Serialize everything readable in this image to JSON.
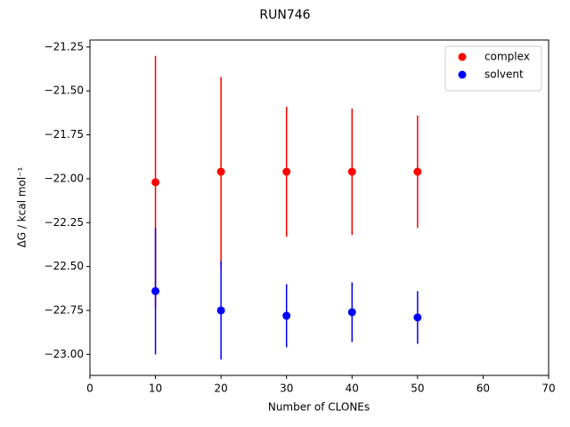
{
  "chart_data": {
    "type": "errorbar",
    "title": "RUN746",
    "x_label": "Number of CLONEs",
    "y_label": "ΔG / kcal mol⁻¹",
    "x": [
      10,
      20,
      30,
      40,
      50
    ],
    "series": [
      {
        "name": "complex",
        "color": "#ff0000",
        "values": [
          -22.02,
          -21.96,
          -21.96,
          -21.96,
          -21.96
        ],
        "errors": [
          0.72,
          0.54,
          0.37,
          0.36,
          0.32
        ]
      },
      {
        "name": "solvent",
        "color": "#0000ff",
        "values": [
          -22.64,
          -22.75,
          -22.78,
          -22.76,
          -22.79
        ],
        "errors": [
          0.36,
          0.28,
          0.18,
          0.17,
          0.15
        ]
      }
    ],
    "xlim": [
      0,
      70
    ],
    "xticks": [
      0,
      10,
      20,
      30,
      40,
      50,
      60,
      70
    ],
    "ylim": [
      -23.12,
      -21.21
    ],
    "yticks": [
      {
        "value": -21.25,
        "label": "−21.25"
      },
      {
        "value": -21.5,
        "label": "−21.50"
      },
      {
        "value": -21.75,
        "label": "−21.75"
      },
      {
        "value": -22.0,
        "label": "−22.00"
      },
      {
        "value": -22.25,
        "label": "−22.25"
      },
      {
        "value": -22.5,
        "label": "−22.50"
      },
      {
        "value": -22.75,
        "label": "−22.75"
      },
      {
        "value": -23.0,
        "label": "−23.00"
      }
    ],
    "legend": "upper right",
    "grid": false
  }
}
